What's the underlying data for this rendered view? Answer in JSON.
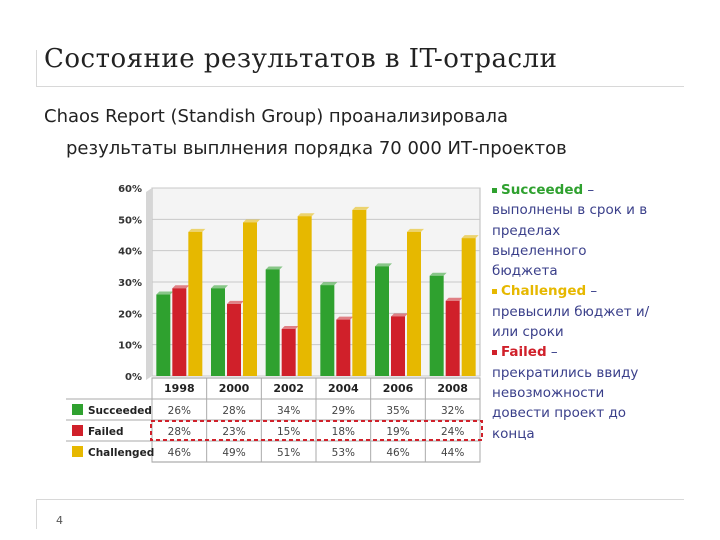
{
  "slide": {
    "title": "Состояние результатов в IT-отрасли",
    "bullet_line1": "Chaos Report (Standish Group) проанализировала",
    "bullet_line2": "результаты выплнения порядка 70 000 ИТ-проектов",
    "page_number": "4"
  },
  "legend": [
    {
      "name": "Succeeded",
      "dash": " –",
      "desc": "выполнены в срок и в пределах выделенного бюджета",
      "color": "#2fa12f"
    },
    {
      "name": "Challenged",
      "dash": " –",
      "desc": "превысили бюджет и/или сроки",
      "color": "#e6b800"
    },
    {
      "name": "Failed",
      "dash": " –",
      "desc": "прекратились ввиду невозможности довести проект до конца",
      "color": "#d0202a"
    }
  ],
  "chart_data": {
    "type": "bar",
    "categories": [
      "1998",
      "2000",
      "2002",
      "2004",
      "2006",
      "2008"
    ],
    "y_ticks": [
      "0%",
      "10%",
      "20%",
      "30%",
      "40%",
      "50%",
      "60%"
    ],
    "ylim": [
      0,
      60
    ],
    "grid": true,
    "series": [
      {
        "name": "Succeeded",
        "color": "#2fa12f",
        "values": [
          26,
          28,
          34,
          29,
          35,
          32
        ],
        "labels": [
          "26%",
          "28%",
          "34%",
          "29%",
          "35%",
          "32%"
        ]
      },
      {
        "name": "Failed",
        "color": "#d0202a",
        "values": [
          28,
          23,
          15,
          18,
          19,
          24
        ],
        "labels": [
          "28%",
          "23%",
          "15%",
          "18%",
          "19%",
          "24%"
        ]
      },
      {
        "name": "Challenged",
        "color": "#e6b800",
        "values": [
          46,
          49,
          51,
          53,
          46,
          44
        ],
        "labels": [
          "46%",
          "49%",
          "51%",
          "53%",
          "46%",
          "44%"
        ]
      }
    ]
  }
}
